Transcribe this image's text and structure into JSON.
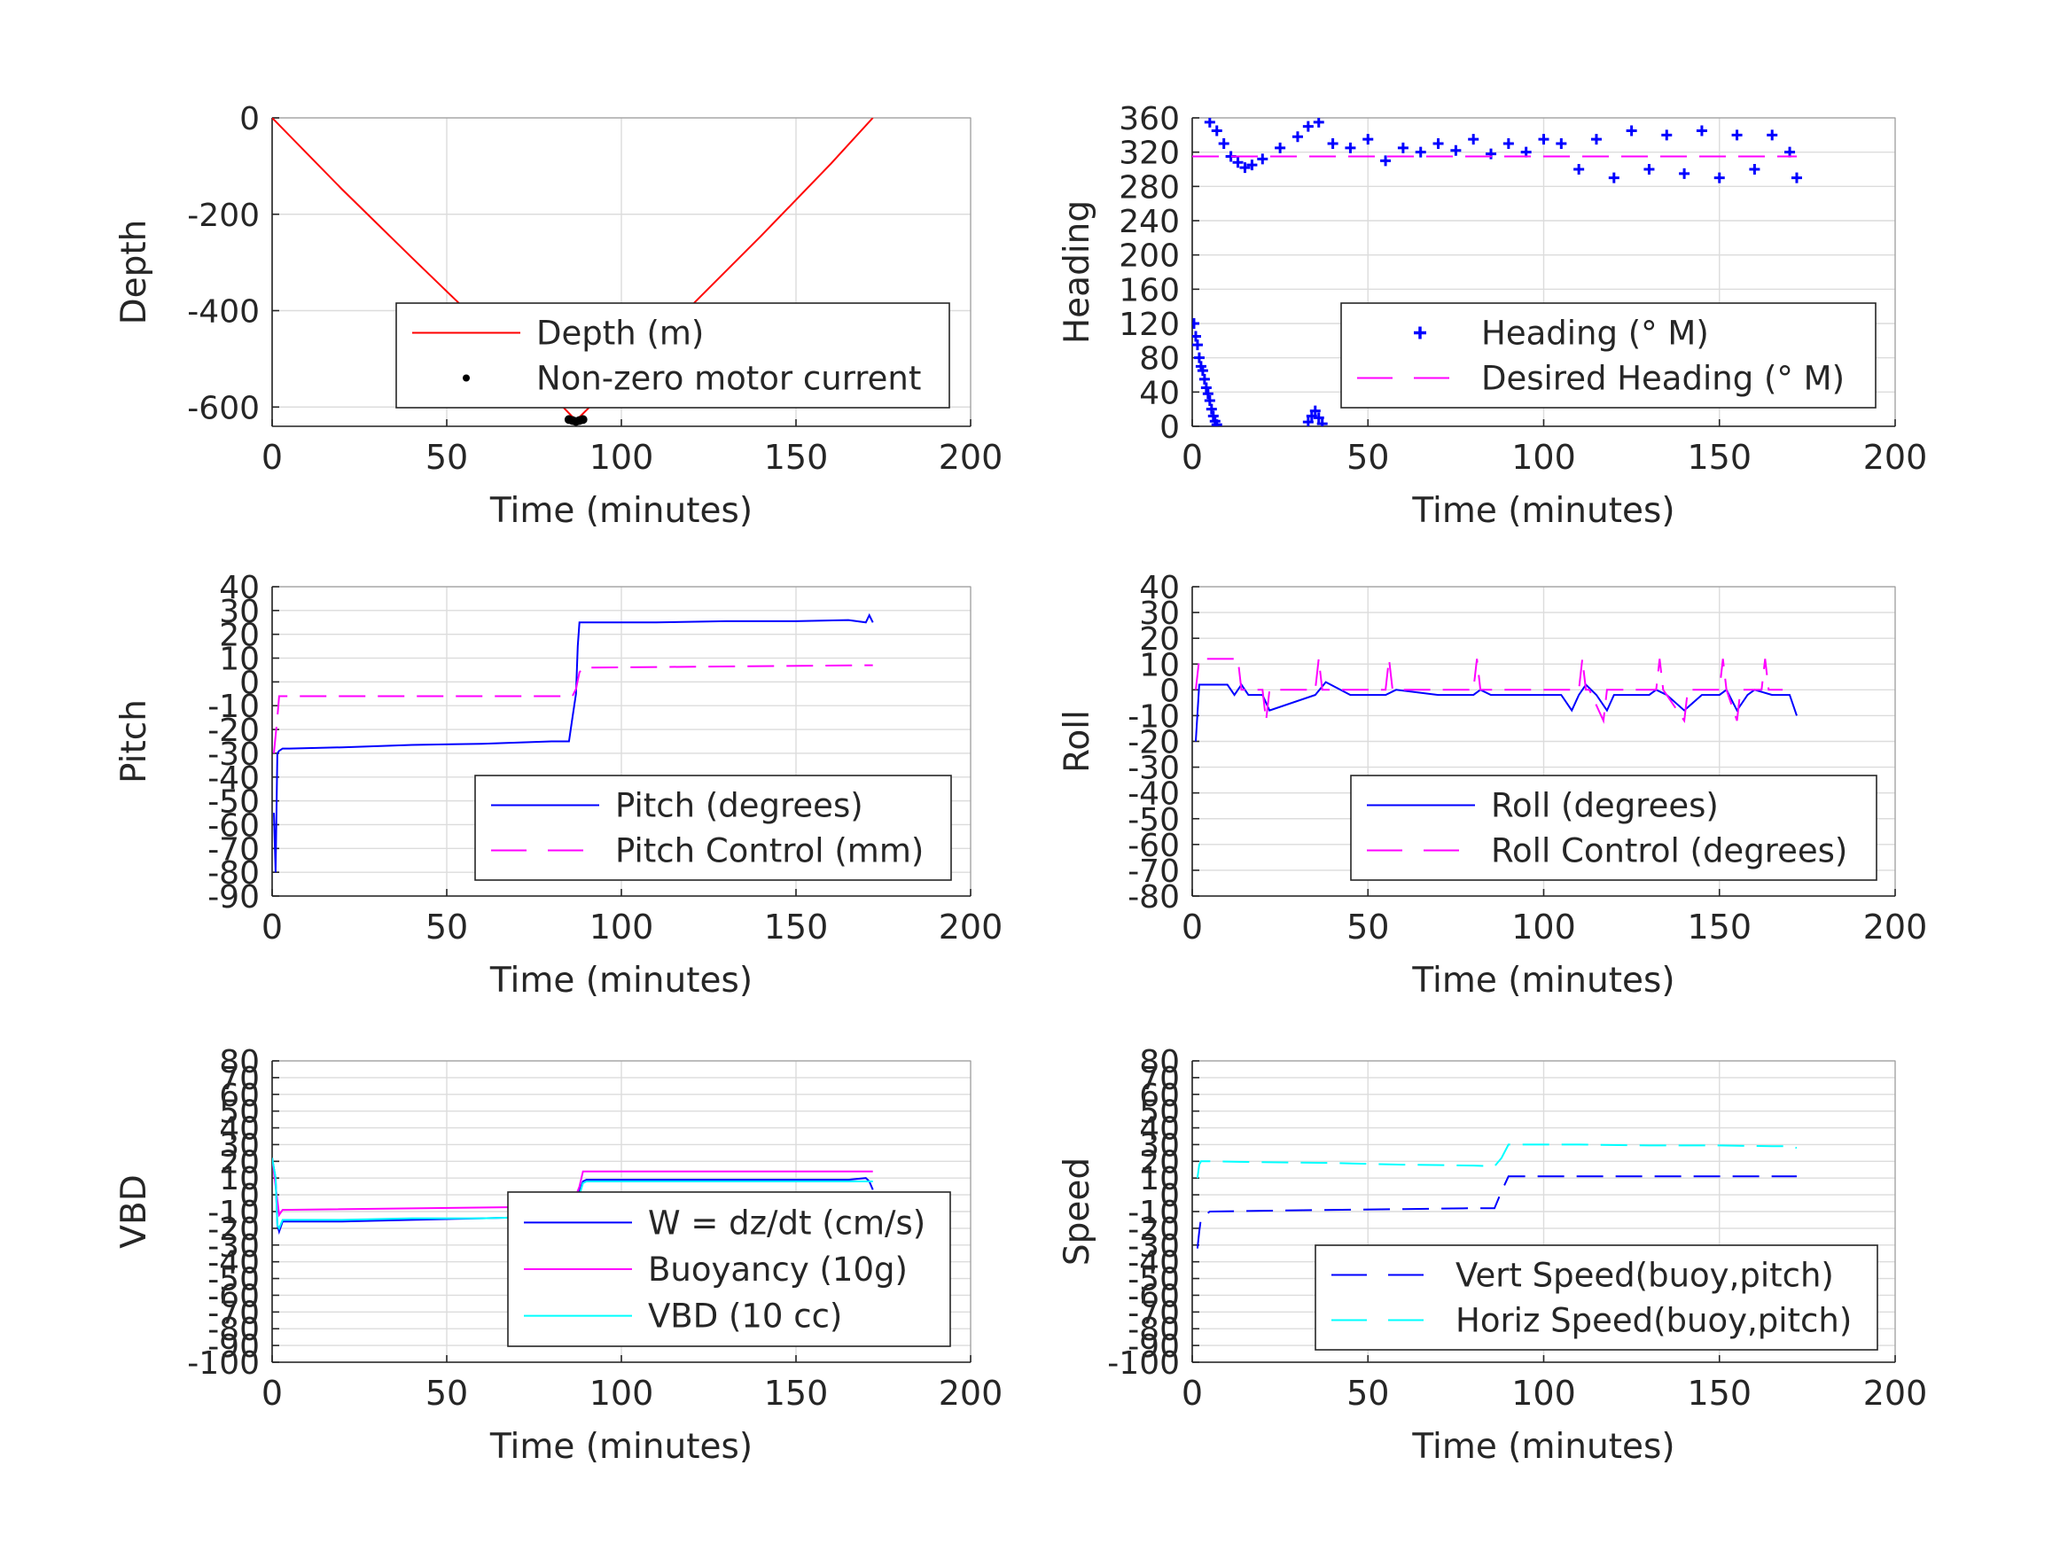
{
  "figure_bg": "#ffffff",
  "chart_data": [
    {
      "type": "line",
      "ylabel": "Depth",
      "xlabel": "Time (minutes)",
      "xlim": [
        0,
        200
      ],
      "ylim": [
        -640,
        0
      ],
      "xticks": [
        0,
        50,
        100,
        150,
        200
      ],
      "yticks": [
        0,
        -200,
        -400,
        -600
      ],
      "grid": true,
      "legend": "bottom-right",
      "series": [
        {
          "name": "Depth (m)",
          "color": "#ff0000",
          "style": "solid",
          "x": [
            0,
            20,
            40,
            60,
            80,
            87,
            100,
            120,
            140,
            160,
            172
          ],
          "y": [
            0,
            -148,
            -290,
            -430,
            -575,
            -628,
            -535,
            -390,
            -245,
            -95,
            0
          ]
        },
        {
          "name": "Non-zero motor current",
          "color": "#000000",
          "style": "dot",
          "x": [
            85,
            86,
            87,
            88,
            89
          ],
          "y": [
            -626,
            -628,
            -630,
            -628,
            -626
          ]
        }
      ]
    },
    {
      "type": "scatter",
      "ylabel": "Heading",
      "xlabel": "Time (minutes)",
      "xlim": [
        0,
        200
      ],
      "ylim": [
        0,
        360
      ],
      "xticks": [
        0,
        50,
        100,
        150,
        200
      ],
      "yticks": [
        0,
        40,
        80,
        120,
        160,
        200,
        240,
        280,
        320,
        360
      ],
      "grid": true,
      "legend": "bottom-right",
      "series": [
        {
          "name": "Heading (° M)",
          "color": "#0000ff",
          "style": "plus",
          "x": [
            5,
            7,
            9,
            11,
            13,
            15,
            17,
            20,
            25,
            30,
            33,
            36,
            40,
            45,
            50,
            55,
            60,
            65,
            70,
            75,
            80,
            85,
            90,
            95,
            100,
            105,
            110,
            115,
            120,
            125,
            130,
            135,
            140,
            145,
            150,
            155,
            160,
            165,
            170,
            172,
            0.5,
            1,
            1.5,
            2,
            2.5,
            3,
            3.5,
            4,
            4.5,
            5,
            5.5,
            6,
            6.5,
            7,
            33,
            34,
            35,
            36,
            37
          ],
          "y": [
            355,
            345,
            330,
            315,
            308,
            302,
            305,
            312,
            325,
            338,
            350,
            355,
            330,
            325,
            335,
            310,
            325,
            320,
            330,
            322,
            335,
            318,
            330,
            320,
            335,
            330,
            300,
            335,
            290,
            345,
            300,
            340,
            295,
            345,
            290,
            340,
            300,
            340,
            320,
            290,
            120,
            105,
            95,
            80,
            70,
            65,
            55,
            45,
            38,
            30,
            20,
            12,
            6,
            2,
            5,
            12,
            18,
            10,
            3
          ]
        },
        {
          "name": "Desired Heading (° M)",
          "color": "#ff00ff",
          "style": "dash",
          "x": [
            0,
            172
          ],
          "y": [
            315,
            315
          ]
        }
      ]
    },
    {
      "type": "line",
      "ylabel": "Pitch",
      "xlabel": "Time (minutes)",
      "xlim": [
        0,
        200
      ],
      "ylim": [
        -90,
        40
      ],
      "xticks": [
        0,
        50,
        100,
        150,
        200
      ],
      "yticks": [
        40,
        30,
        20,
        10,
        0,
        -10,
        -20,
        -30,
        -40,
        -50,
        -60,
        -70,
        -80,
        -90
      ],
      "grid": true,
      "legend": "bottom-right",
      "series": [
        {
          "name": "Pitch (degrees)",
          "color": "#0000ff",
          "style": "solid",
          "x": [
            0.5,
            1,
            1.5,
            2,
            3,
            5,
            20,
            40,
            60,
            80,
            85,
            86,
            87,
            87.5,
            88,
            90,
            110,
            130,
            150,
            165,
            170,
            171,
            172
          ],
          "y": [
            -55,
            -80,
            -30,
            -29,
            -28,
            -28,
            -27.5,
            -26.5,
            -26,
            -25,
            -25,
            -15,
            -5,
            15,
            25,
            25,
            25,
            25.5,
            25.5,
            26,
            25,
            28,
            25
          ]
        },
        {
          "name": "Pitch Control (mm)",
          "color": "#ff00ff",
          "style": "dash",
          "x": [
            0.5,
            1.5,
            2,
            86,
            87,
            88,
            89,
            172
          ],
          "y": [
            -30,
            -15,
            -6,
            -6,
            -3,
            4,
            6,
            7
          ]
        }
      ]
    },
    {
      "type": "line",
      "ylabel": "Roll",
      "xlabel": "Time (minutes)",
      "xlim": [
        0,
        200
      ],
      "ylim": [
        -80,
        40
      ],
      "xticks": [
        0,
        50,
        100,
        150,
        200
      ],
      "yticks": [
        40,
        30,
        20,
        10,
        0,
        -10,
        -20,
        -30,
        -40,
        -50,
        -60,
        -70,
        -80
      ],
      "grid": true,
      "legend": "bottom-right",
      "series": [
        {
          "name": "Roll (degrees)",
          "color": "#0000ff",
          "style": "solid",
          "x": [
            1,
            2,
            3,
            10,
            12,
            14,
            16,
            20,
            22,
            35,
            38,
            45,
            55,
            58,
            70,
            80,
            82,
            85,
            100,
            105,
            108,
            110,
            112,
            115,
            118,
            120,
            125,
            130,
            132,
            135,
            140,
            145,
            150,
            152,
            155,
            158,
            160,
            165,
            170,
            172
          ],
          "y": [
            -20,
            2,
            2,
            2,
            -2,
            2,
            -2,
            -2,
            -8,
            -2,
            3,
            -2,
            -2,
            0,
            -2,
            -2,
            0,
            -2,
            -2,
            -2,
            -8,
            -2,
            2,
            -2,
            -8,
            -2,
            -2,
            -2,
            0,
            -2,
            -8,
            -2,
            -2,
            0,
            -8,
            -2,
            0,
            -2,
            -2,
            -10
          ]
        },
        {
          "name": "Roll Control (degrees)",
          "color": "#ff00ff",
          "style": "dash",
          "x": [
            1,
            2,
            12,
            13,
            14,
            20,
            21,
            22,
            35,
            36,
            37,
            55,
            56,
            57,
            80,
            81,
            82,
            110,
            111,
            112,
            113,
            117,
            118,
            132,
            133,
            134,
            140,
            141,
            150,
            151,
            152,
            155,
            156,
            162,
            163,
            164,
            168
          ],
          "y": [
            0,
            12,
            12,
            12,
            0,
            0,
            -12,
            0,
            0,
            12,
            0,
            0,
            12,
            0,
            0,
            12,
            0,
            0,
            12,
            0,
            0,
            -12,
            0,
            0,
            12,
            0,
            -12,
            0,
            0,
            12,
            0,
            -12,
            0,
            0,
            12,
            0,
            0
          ]
        }
      ]
    },
    {
      "type": "line",
      "ylabel": "VBD",
      "xlabel": "Time (minutes)",
      "xlim": [
        0,
        200
      ],
      "ylim": [
        -100,
        80
      ],
      "xticks": [
        0,
        50,
        100,
        150,
        200
      ],
      "yticks": [
        80,
        70,
        60,
        50,
        40,
        30,
        20,
        10,
        0,
        -10,
        -20,
        -30,
        -40,
        -50,
        -60,
        -70,
        -80,
        -90,
        -100
      ],
      "ytick_labels": [
        "80",
        "70",
        "60",
        "50",
        "40",
        "30",
        "20",
        "10",
        "0",
        "-10",
        "-20",
        "-30",
        "-40",
        "-50",
        "-60",
        "-70",
        "-80",
        "-90",
        "-100"
      ],
      "grid": true,
      "legend": "bottom-right",
      "series": [
        {
          "name": "W = dz/dt (cm/s)",
          "color": "#0000ff",
          "style": "solid",
          "x": [
            0,
            1,
            1.5,
            2,
            3,
            5,
            20,
            40,
            60,
            80,
            85,
            87,
            88,
            89,
            90,
            110,
            130,
            150,
            165,
            170,
            171,
            172
          ],
          "y": [
            22,
            10,
            -18,
            -22,
            -16,
            -16,
            -16,
            -15,
            -14,
            -13,
            -12,
            -5,
            2,
            8,
            9,
            9,
            9,
            9,
            9,
            10,
            8,
            3
          ]
        },
        {
          "name": "Buoyancy (10g)",
          "color": "#ff00ff",
          "style": "solid",
          "x": [
            0,
            2,
            3,
            85,
            86,
            88,
            89,
            90,
            172
          ],
          "y": [
            22,
            -12,
            -9,
            -7,
            -6,
            5,
            14,
            14,
            14
          ]
        },
        {
          "name": "VBD (10 cc)",
          "color": "#00ffff",
          "style": "solid",
          "x": [
            0,
            1,
            1.5,
            2,
            3,
            5,
            20,
            40,
            60,
            80,
            85,
            87,
            88,
            89,
            90,
            110,
            130,
            150,
            165,
            170,
            172
          ],
          "y": [
            22,
            10,
            -18,
            -20,
            -15,
            -15,
            -15,
            -14,
            -14,
            -13,
            -13,
            -5,
            0,
            7,
            8,
            8,
            8,
            8,
            8,
            8,
            8
          ]
        }
      ]
    },
    {
      "type": "line",
      "ylabel": "Speed",
      "xlabel": "Time (minutes)",
      "xlim": [
        0,
        200
      ],
      "ylim": [
        -100,
        80
      ],
      "xticks": [
        0,
        50,
        100,
        150,
        200
      ],
      "yticks": [
        80,
        70,
        60,
        50,
        40,
        30,
        20,
        10,
        0,
        -10,
        -20,
        -30,
        -40,
        -50,
        -60,
        -70,
        -80,
        -90,
        -100
      ],
      "ytick_labels": [
        "80",
        "70",
        "60",
        "50",
        "40",
        "30",
        "20",
        "10",
        "0",
        "-10",
        "-20",
        "-30",
        "-40",
        "-50",
        "-60",
        "-70",
        "-80",
        "-90",
        "-100"
      ],
      "grid": true,
      "legend": "bottom-right",
      "series": [
        {
          "name": "Vert Speed(buoy,pitch)",
          "color": "#0000ff",
          "style": "dash",
          "x": [
            1.5,
            2,
            2.5,
            5,
            20,
            40,
            60,
            80,
            86,
            88,
            90,
            92,
            110,
            130,
            150,
            165,
            170,
            172
          ],
          "y": [
            -32,
            -22,
            -14,
            -10,
            -9.5,
            -9,
            -8.5,
            -8,
            -8,
            2,
            11,
            11,
            11,
            11,
            11,
            11,
            11,
            11
          ]
        },
        {
          "name": "Horiz Speed(buoy,pitch)",
          "color": "#00ffff",
          "style": "dash",
          "x": [
            1.5,
            2,
            2.5,
            5,
            20,
            40,
            60,
            80,
            86,
            88,
            90,
            92,
            110,
            130,
            150,
            165,
            170,
            172
          ],
          "y": [
            10,
            18,
            20,
            20,
            19.5,
            19,
            18,
            17.5,
            17,
            22,
            30,
            30,
            30,
            29.5,
            29.5,
            29,
            29,
            28
          ]
        }
      ]
    }
  ]
}
